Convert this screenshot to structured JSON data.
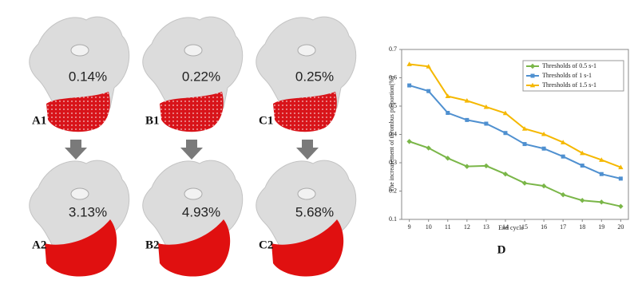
{
  "panels": [
    {
      "label": "A1",
      "value_text": "0.14%"
    },
    {
      "label": "B1",
      "value_text": "0.22%"
    },
    {
      "label": "C1",
      "value_text": "0.25%"
    },
    {
      "label": "A2",
      "value_text": "3.13%"
    },
    {
      "label": "B2",
      "value_text": "4.93%"
    },
    {
      "label": "C2",
      "value_text": "5.68%"
    }
  ],
  "chart_data": {
    "type": "line",
    "panel_label": "D",
    "x_label": "End cycle",
    "y_label": "The increasement of thrombus proportion(%)",
    "x": [
      9,
      10,
      11,
      12,
      13,
      14,
      15,
      16,
      17,
      18,
      19,
      20
    ],
    "series": [
      {
        "name": "Thresholds of 0.5 s-1",
        "color": "#7ab648",
        "marker": "diamond",
        "values": [
          0.375,
          0.352,
          0.316,
          0.287,
          0.289,
          0.26,
          0.228,
          0.218,
          0.187,
          0.167,
          0.161,
          0.146
        ]
      },
      {
        "name": "Thresholds of 1 s-1",
        "color": "#4f90d0",
        "marker": "square",
        "values": [
          0.573,
          0.553,
          0.476,
          0.451,
          0.438,
          0.405,
          0.366,
          0.35,
          0.322,
          0.29,
          0.26,
          0.244
        ]
      },
      {
        "name": "Thresholds of 1.5 s-1",
        "color": "#f5b800",
        "marker": "triangle",
        "values": [
          0.648,
          0.64,
          0.535,
          0.519,
          0.497,
          0.475,
          0.42,
          0.401,
          0.372,
          0.334,
          0.31,
          0.284
        ]
      }
    ],
    "xlim": [
      8.6,
      20.4
    ],
    "xticks": [
      9,
      10,
      11,
      12,
      13,
      14,
      15,
      16,
      17,
      18,
      19,
      20
    ],
    "ylim": [
      0.1,
      0.7
    ],
    "yticks": [
      0.1,
      0.2,
      0.3,
      0.4,
      0.5,
      0.6,
      0.7
    ],
    "legend": "upper right",
    "grid": false
  }
}
